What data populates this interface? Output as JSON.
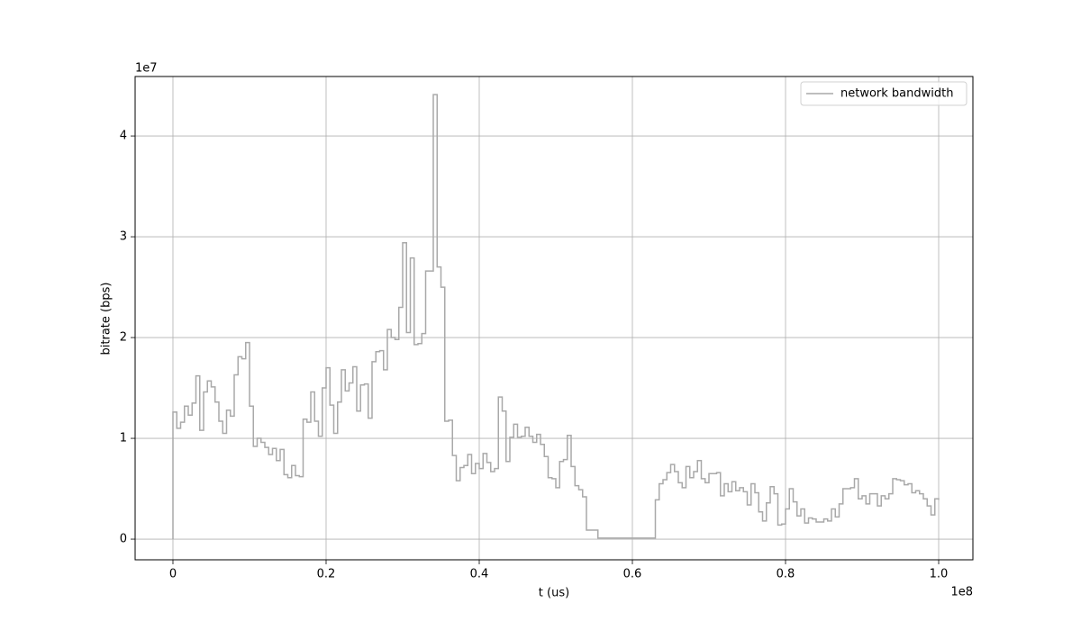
{
  "chart_data": {
    "type": "line",
    "drawstyle": "steps-post",
    "x_label": "t (us)",
    "y_label": "bitrate (bps)",
    "x_offset_label": "1e8",
    "y_offset_label": "1e7",
    "xlim": [
      -4940000,
      104470000
    ],
    "ylim": [
      -2050000,
      45900000
    ],
    "xticks": [
      0,
      {
        "value": 20000000,
        "label": "0.2"
      },
      {
        "value": 40000000,
        "label": "0.4"
      },
      {
        "value": 60000000,
        "label": "0.6"
      },
      {
        "value": 80000000,
        "label": "0.8"
      },
      {
        "value": 100000000,
        "label": "1.0"
      }
    ],
    "yticks": [
      0,
      {
        "value": 10000000,
        "label": "1"
      },
      {
        "value": 20000000,
        "label": "2"
      },
      {
        "value": 30000000,
        "label": "3"
      },
      {
        "value": 40000000,
        "label": "4"
      }
    ],
    "grid": true,
    "legend": "upper right",
    "x": [
      0,
      0,
      500000,
      1000000,
      1500000,
      2000000,
      2500000,
      3000000,
      3500000,
      4000000,
      4500000,
      5000000,
      5500000,
      6000000,
      6500000,
      7000000,
      7500000,
      8000000,
      8500000,
      9000000,
      9500000,
      10000000,
      10500000,
      11000000,
      11500000,
      12000000,
      12500000,
      13000000,
      13500000,
      14000000,
      14500000,
      15000000,
      15500000,
      16000000,
      16500000,
      17000000,
      17500000,
      18000000,
      18500000,
      19000000,
      19500000,
      20000000,
      20500000,
      21000000,
      21500000,
      22000000,
      22500000,
      23000000,
      23500000,
      24000000,
      24500000,
      25000000,
      25500000,
      26000000,
      26500000,
      27000000,
      27500000,
      28000000,
      28500000,
      29000000,
      29500000,
      30000000,
      30500000,
      31000000,
      31500000,
      32000000,
      32500000,
      33000000,
      33500000,
      34000000,
      34500000,
      35000000,
      35500000,
      36000000,
      36500000,
      37000000,
      37500000,
      38000000,
      38500000,
      39000000,
      39500000,
      40000000,
      40500000,
      41000000,
      41500000,
      42000000,
      42500000,
      43000000,
      43500000,
      44000000,
      44500000,
      45000000,
      45500000,
      46000000,
      46500000,
      47000000,
      47500000,
      48000000,
      48500000,
      49000000,
      49500000,
      50000000,
      50500000,
      51000000,
      51500000,
      52000000,
      52500000,
      53000000,
      53500000,
      54000000,
      54500000,
      55000000,
      55500000,
      56000000,
      56500000,
      57000000,
      57500000,
      58000000,
      58500000,
      59000000,
      59500000,
      60000000,
      60500000,
      61000000,
      61500000,
      62000000,
      62500000,
      63000000,
      63500000,
      64000000,
      64500000,
      65000000,
      65500000,
      66000000,
      66500000,
      67000000,
      67500000,
      68000000,
      68500000,
      69000000,
      69500000,
      70000000,
      70500000,
      71000000,
      71500000,
      72000000,
      72500000,
      73000000,
      73500000,
      74000000,
      74500000,
      75000000,
      75500000,
      76000000,
      76500000,
      77000000,
      77500000,
      78000000,
      78500000,
      79000000,
      79500000,
      80000000,
      80500000,
      81000000,
      81500000,
      82000000,
      82500000,
      83000000,
      83500000,
      84000000,
      84500000,
      85000000,
      85500000,
      86000000,
      86500000,
      87000000,
      87500000,
      88000000,
      88500000,
      89000000,
      89500000,
      90000000,
      90500000,
      91000000,
      91500000,
      92000000,
      92500000,
      93000000,
      93500000,
      94000000,
      94500000,
      95000000,
      95500000,
      96000000,
      96500000,
      97000000,
      97500000,
      98000000,
      98500000,
      99000000,
      99500000,
      100000000
    ],
    "series": [
      {
        "name": "network bandwidth",
        "color": "#a9a9a9",
        "values": [
          0,
          12600000,
          11000000,
          11600000,
          13200000,
          12300000,
          13500000,
          16200000,
          10800000,
          14600000,
          15700000,
          15100000,
          13600000,
          11700000,
          10500000,
          12800000,
          12200000,
          16300000,
          18100000,
          17900000,
          19500000,
          13200000,
          9200000,
          10000000,
          9600000,
          9100000,
          8400000,
          9000000,
          7800000,
          8900000,
          6400000,
          6100000,
          7300000,
          6300000,
          6200000,
          11900000,
          11600000,
          14600000,
          11700000,
          10200000,
          15000000,
          17000000,
          13300000,
          10500000,
          13600000,
          16800000,
          14700000,
          15500000,
          17100000,
          12700000,
          15300000,
          15400000,
          12000000,
          17600000,
          18600000,
          18700000,
          16800000,
          20800000,
          20000000,
          19800000,
          23000000,
          29400000,
          20500000,
          27900000,
          19300000,
          19400000,
          20400000,
          26600000,
          26600000,
          44100000,
          27000000,
          25000000,
          11700000,
          11800000,
          8300000,
          5800000,
          7100000,
          7300000,
          8400000,
          6500000,
          7500000,
          7000000,
          8500000,
          7600000,
          6700000,
          7000000,
          14100000,
          12700000,
          7700000,
          10100000,
          11400000,
          10100000,
          10200000,
          11100000,
          10200000,
          9600000,
          10400000,
          9400000,
          8200000,
          6100000,
          6000000,
          5100000,
          7700000,
          7900000,
          10300000,
          7200000,
          5300000,
          4900000,
          4200000,
          900000,
          900000,
          900000,
          100000,
          100000,
          100000,
          100000,
          100000,
          100000,
          100000,
          100000,
          100000,
          100000,
          100000,
          100000,
          100000,
          100000,
          100000,
          3900000,
          5500000,
          5900000,
          6600000,
          7400000,
          6700000,
          5600000,
          5100000,
          7200000,
          6100000,
          6700000,
          7800000,
          6000000,
          5600000,
          6500000,
          6500000,
          6600000,
          4300000,
          5500000,
          4700000,
          5700000,
          4800000,
          5100000,
          4700000,
          3400000,
          5500000,
          4600000,
          2700000,
          1800000,
          3600000,
          5200000,
          4500000,
          1400000,
          1500000,
          3000000,
          5000000,
          3700000,
          2300000,
          3000000,
          1600000,
          2100000,
          2000000,
          1700000,
          1700000,
          2000000,
          1800000,
          3000000,
          2200000,
          3500000,
          5000000,
          5000000,
          5100000,
          6000000,
          4000000,
          4300000,
          3500000,
          4500000,
          4500000,
          3300000,
          4300000,
          4000000,
          4500000,
          6000000,
          5900000,
          5800000,
          5400000,
          5500000,
          4600000,
          4800000,
          4500000,
          4000000,
          3300000,
          2400000,
          4000000,
          3900000
        ]
      }
    ]
  }
}
